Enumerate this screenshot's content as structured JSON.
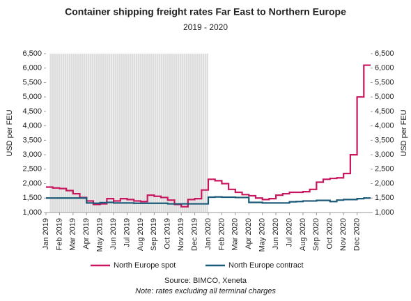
{
  "chart_data": {
    "type": "line",
    "title": "Container shipping freight rates Far East to Northern Europe",
    "subtitle": "2019 - 2020",
    "y_label": "USD per FEU",
    "y2_label": "USD per FEU",
    "source": "Source: BIMCO, Xeneta",
    "note": "Note: rates excluding all terminal charges",
    "categories": [
      "Jan 2019",
      null,
      "Feb 2019",
      null,
      "Mar 2019",
      null,
      "Apr 2019",
      null,
      "May 2019",
      null,
      "Jun 2019",
      null,
      "Jul 2019",
      null,
      "Aug 2019",
      null,
      "Sep 2019",
      null,
      "Oct 2019",
      null,
      "Nov 2019",
      null,
      "Dec 2019",
      null,
      "Jan 2020",
      null,
      "Feb 2020",
      null,
      "Mar 2020",
      null,
      "Apr 2020",
      null,
      "May 2020",
      null,
      "Jun 2020",
      null,
      "Jul 2020",
      null,
      "Aug 2020",
      null,
      "Sep 2020",
      null,
      "Oct 2020",
      null,
      "Nov 2020",
      null,
      "Dec 2020",
      null
    ],
    "series": [
      {
        "name": "North Europe spot",
        "color": "#c8175f",
        "values": [
          1880,
          1850,
          1830,
          1760,
          1650,
          1520,
          1400,
          1280,
          1300,
          1480,
          1400,
          1480,
          1450,
          1400,
          1380,
          1600,
          1560,
          1520,
          1430,
          1280,
          1200,
          1450,
          1480,
          1780,
          2150,
          2100,
          2000,
          1800,
          1700,
          1620,
          1580,
          1500,
          1450,
          1480,
          1600,
          1650,
          1700,
          1700,
          1720,
          1800,
          2050,
          2150,
          2180,
          2200,
          2350,
          3000,
          5000,
          6100
        ]
      },
      {
        "name": "North Europe contract",
        "color": "#1a5a78",
        "values": [
          1500,
          1500,
          1500,
          1500,
          1500,
          1500,
          1330,
          1320,
          1340,
          1350,
          1330,
          1330,
          1330,
          1320,
          1320,
          1320,
          1320,
          1320,
          1300,
          1300,
          1300,
          1300,
          1300,
          1300,
          1530,
          1540,
          1530,
          1530,
          1520,
          1520,
          1350,
          1350,
          1330,
          1330,
          1330,
          1330,
          1370,
          1380,
          1400,
          1400,
          1420,
          1420,
          1380,
          1430,
          1450,
          1450,
          1480,
          1500
        ]
      }
    ],
    "ylim": [
      1000,
      6500
    ],
    "yticks": [
      {
        "value": 1000,
        "label": "1,000"
      },
      {
        "value": 1500,
        "label": "1,500"
      },
      {
        "value": 2000,
        "label": "2,000"
      },
      {
        "value": 2500,
        "label": "2,500"
      },
      {
        "value": 3000,
        "label": "3,000"
      },
      {
        "value": 3500,
        "label": "3,500"
      },
      {
        "value": 4000,
        "label": "4,000"
      },
      {
        "value": 4500,
        "label": "4,500"
      },
      {
        "value": 5000,
        "label": "5,000"
      },
      {
        "value": 5500,
        "label": "5,500"
      },
      {
        "value": 6000,
        "label": "6,000"
      },
      {
        "value": 6500,
        "label": "6,500"
      }
    ],
    "y2lim": [
      1000,
      6500
    ],
    "y2ticks": [
      {
        "value": 1000,
        "label": "1,000"
      },
      {
        "value": 1500,
        "label": "1,500"
      },
      {
        "value": 2000,
        "label": "2,000"
      },
      {
        "value": 2500,
        "label": "2,500"
      },
      {
        "value": 3000,
        "label": "3,000"
      },
      {
        "value": 3500,
        "label": "3,500"
      },
      {
        "value": 4000,
        "label": "4,000"
      },
      {
        "value": 4500,
        "label": "4,500"
      },
      {
        "value": 5000,
        "label": "5,000"
      },
      {
        "value": 5500,
        "label": "5,500"
      },
      {
        "value": 6000,
        "label": "6,000"
      },
      {
        "value": 6500,
        "label": "6,500"
      }
    ]
  }
}
